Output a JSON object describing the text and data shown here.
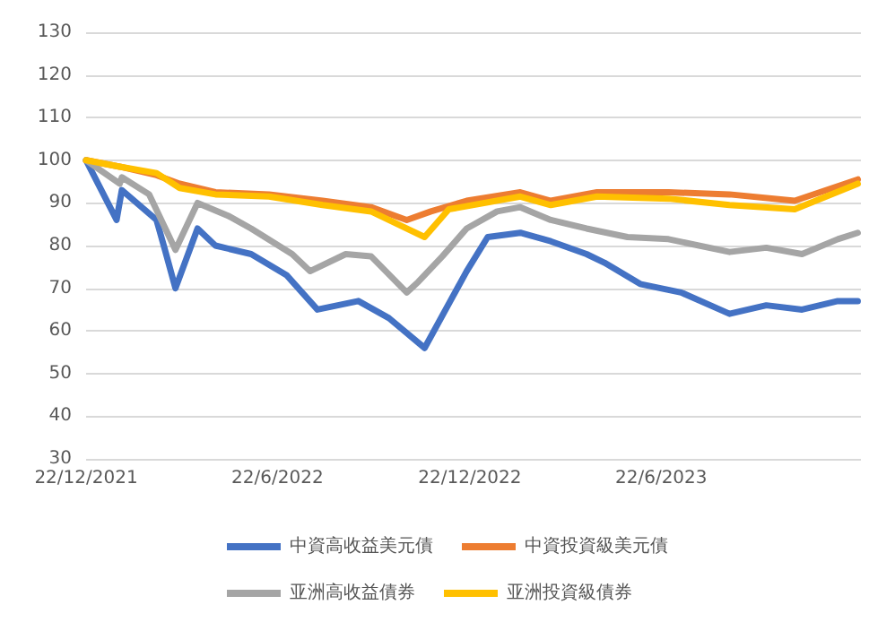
{
  "chart_data": {
    "type": "line",
    "xlim": [
      "2021-12-22",
      "2023-12-29"
    ],
    "xticks": [
      {
        "value": "2021-12-22",
        "label": "22/12/2021"
      },
      {
        "value": "2022-06-22",
        "label": "22/6/2022"
      },
      {
        "value": "2022-12-22",
        "label": "22/12/2022"
      },
      {
        "value": "2023-06-22",
        "label": "22/6/2023"
      }
    ],
    "ylim": [
      30,
      130
    ],
    "yticks": [
      30,
      40,
      50,
      60,
      70,
      80,
      90,
      100,
      110,
      120,
      130
    ],
    "grid": "y",
    "legend": "bottom",
    "marker": "none",
    "line_style": "solid",
    "series": [
      {
        "name": "中資高收益美元債",
        "color": "#4472c4",
        "x": [
          "2021-12-22",
          "2022-01-20",
          "2022-01-25",
          "2022-02-27",
          "2022-03-07",
          "2022-03-17",
          "2022-04-07",
          "2022-04-24",
          "2022-05-28",
          "2022-07-01",
          "2022-07-30",
          "2022-09-07",
          "2022-10-06",
          "2022-11-09",
          "2022-12-19",
          "2023-01-08",
          "2023-02-08",
          "2023-03-09",
          "2023-04-12",
          "2023-04-29",
          "2023-06-02",
          "2023-07-11",
          "2023-08-26",
          "2023-09-30",
          "2023-11-03",
          "2023-12-07",
          "2023-12-26"
        ],
        "values": [
          100,
          86,
          93,
          86,
          79,
          70,
          84,
          80,
          78,
          73,
          65,
          67,
          63,
          56,
          74,
          82,
          83,
          81,
          78,
          76,
          71,
          69,
          64,
          66,
          65,
          67,
          67
        ]
      },
      {
        "name": "中資投資級美元債",
        "color": "#ed7d31",
        "x": [
          "2021-12-22",
          "2022-01-23",
          "2022-02-27",
          "2022-03-21",
          "2022-04-24",
          "2022-06-14",
          "2022-08-04",
          "2022-09-19",
          "2022-10-23",
          "2022-11-15",
          "2022-12-19",
          "2023-02-08",
          "2023-03-09",
          "2023-04-22",
          "2023-06-29",
          "2023-08-26",
          "2023-10-27",
          "2023-12-26"
        ],
        "values": [
          100,
          98.5,
          96.5,
          94.5,
          92.5,
          92,
          90.5,
          89,
          86,
          88,
          90.5,
          92.5,
          90.5,
          92.5,
          92.5,
          92,
          90.5,
          95.5
        ]
      },
      {
        "name": "亚洲高收益債券",
        "color": "#a5a5a5",
        "x": [
          "2021-12-22",
          "2022-01-23",
          "2022-01-25",
          "2022-02-20",
          "2022-03-17",
          "2022-04-07",
          "2022-05-06",
          "2022-05-28",
          "2022-07-06",
          "2022-07-23",
          "2022-08-26",
          "2022-09-19",
          "2022-10-23",
          "2022-11-03",
          "2022-11-26",
          "2022-12-19",
          "2023-01-17",
          "2023-02-08",
          "2023-03-09",
          "2023-04-12",
          "2023-05-21",
          "2023-06-29",
          "2023-08-26",
          "2023-09-30",
          "2023-11-03",
          "2023-12-07",
          "2023-12-26"
        ],
        "values": [
          100,
          94.5,
          96,
          92,
          79,
          90,
          87,
          84,
          78,
          74,
          78,
          77.5,
          69,
          71.5,
          77.5,
          84,
          88,
          89,
          86,
          84,
          82,
          81.5,
          78.5,
          79.5,
          78,
          81.5,
          83
        ]
      },
      {
        "name": "亚洲投資級債券",
        "color": "#ffc000",
        "x": [
          "2021-12-22",
          "2022-01-23",
          "2022-02-27",
          "2022-03-21",
          "2022-04-24",
          "2022-06-14",
          "2022-08-04",
          "2022-09-19",
          "2022-11-09",
          "2022-12-02",
          "2023-02-08",
          "2023-03-09",
          "2023-04-22",
          "2023-06-29",
          "2023-08-26",
          "2023-10-27",
          "2023-12-26"
        ],
        "values": [
          100,
          98.5,
          97,
          93.5,
          92,
          91.5,
          89.5,
          88,
          82,
          88.5,
          91.5,
          89.5,
          91.5,
          91,
          89.5,
          88.5,
          94.5
        ]
      }
    ]
  }
}
